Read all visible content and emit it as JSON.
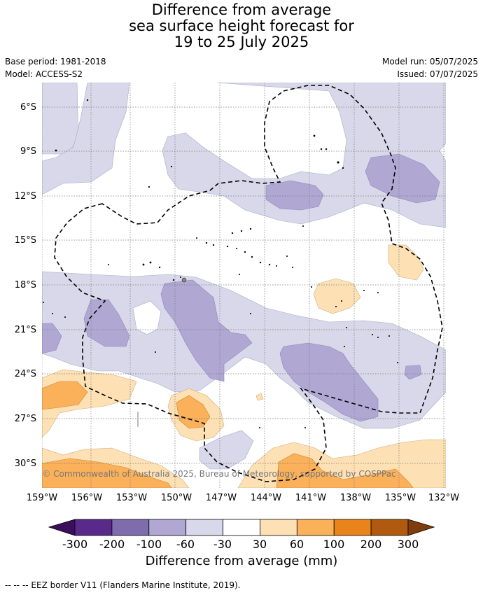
{
  "header": {
    "title_lines": [
      "Difference from average",
      "sea surface height forecast for",
      "19 to 25 July 2025"
    ],
    "base_period": "Base period: 1981-2018",
    "model": "Model: ACCESS-S2",
    "model_run": "Model run: 05/07/2025",
    "issued": "Issued: 07/07/2025"
  },
  "map": {
    "lon_ticks": [
      "159°W",
      "156°W",
      "153°W",
      "150°W",
      "147°W",
      "144°W",
      "141°W",
      "138°W",
      "135°W",
      "132°W"
    ],
    "lat_ticks": [
      "6°S",
      "9°S",
      "12°S",
      "15°S",
      "18°S",
      "21°S",
      "24°S",
      "27°S",
      "30°S"
    ],
    "copyright": "© Commonwealth of Australia 2025, Bureau of Meteorology, supported by COSPPac",
    "grid": true,
    "lon_range": [
      -159,
      -132
    ],
    "lat_range": [
      -32,
      -5
    ]
  },
  "colorbar": {
    "ticks": [
      "-300",
      "-200",
      "-100",
      "-60",
      "-30",
      "30",
      "60",
      "100",
      "200",
      "300"
    ],
    "colors": [
      "#5a2a8a",
      "#7e6cad",
      "#b0a8d3",
      "#d8d8ea",
      "#ffffff",
      "#fde0b4",
      "#fbb05a",
      "#e8841a",
      "#b05a10"
    ],
    "under_color": "#3b0f5c",
    "over_color": "#7e3d0a",
    "label": "Difference from average (mm)"
  },
  "footer": {
    "legend": "-- -- -- EEZ border V11 (Flanders Marine Institute, 2019)."
  }
}
